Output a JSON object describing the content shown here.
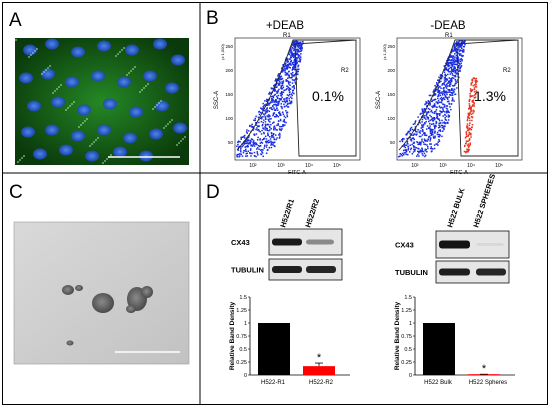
{
  "panels": {
    "A": {
      "label": "A"
    },
    "B": {
      "label": "B",
      "plots": [
        {
          "title": "+DEAB",
          "gate_top": "R1",
          "gate_right": "R2",
          "percent": "0.1%",
          "xlabel": "FITC-A",
          "ylabel": "SSC-A",
          "ymult": "(x 1,000)",
          "yticks": [
            "250",
            "200",
            "150",
            "100",
            "50"
          ],
          "xticks": [
            "10²",
            "10³",
            "10⁴",
            "10⁵"
          ]
        },
        {
          "title": "-DEAB",
          "gate_top": "R1",
          "gate_right": "R2",
          "percent": "1.3%",
          "xlabel": "FITC-A",
          "ylabel": "SSC-A",
          "ymult": "(x 1,000)",
          "yticks": [
            "250",
            "200",
            "150",
            "100",
            "50"
          ],
          "xticks": [
            "10²",
            "10³",
            "10⁴",
            "10⁵"
          ]
        }
      ]
    },
    "C": {
      "label": "C"
    },
    "D": {
      "label": "D"
    }
  },
  "blots": [
    {
      "lanes": [
        "H522/R1",
        "H522/R2"
      ],
      "rows": [
        "CX43",
        "TUBULIN"
      ]
    },
    {
      "lanes": [
        "H522 BULK",
        "H522 SPHERES"
      ],
      "rows": [
        "CX43",
        "TUBULIN"
      ]
    }
  ],
  "chart_data": [
    {
      "type": "bar",
      "categories": [
        "H522-R1",
        "H522-R2"
      ],
      "values": [
        1.0,
        0.17
      ],
      "errors": [
        0,
        0.06
      ],
      "colors": [
        "#000000",
        "#ff0000"
      ],
      "ylabel": "Relative Band Density",
      "ylim": [
        0,
        1.5
      ],
      "yticks": [
        "0",
        "0.25",
        "0.5",
        "0.75",
        "1",
        "1.25",
        "1.5"
      ],
      "annotation": "*"
    },
    {
      "type": "bar",
      "categories": [
        "H522 Bulk",
        "H522 Spheres"
      ],
      "values": [
        1.0,
        0.01
      ],
      "errors": [
        0,
        0.005
      ],
      "colors": [
        "#000000",
        "#ff0000"
      ],
      "ylabel": "Relative Band Density",
      "ylim": [
        0,
        1.5
      ],
      "yticks": [
        "0",
        "0.25",
        "0.5",
        "0.75",
        "1",
        "1.25",
        "1.5"
      ],
      "annotation": "*"
    }
  ]
}
